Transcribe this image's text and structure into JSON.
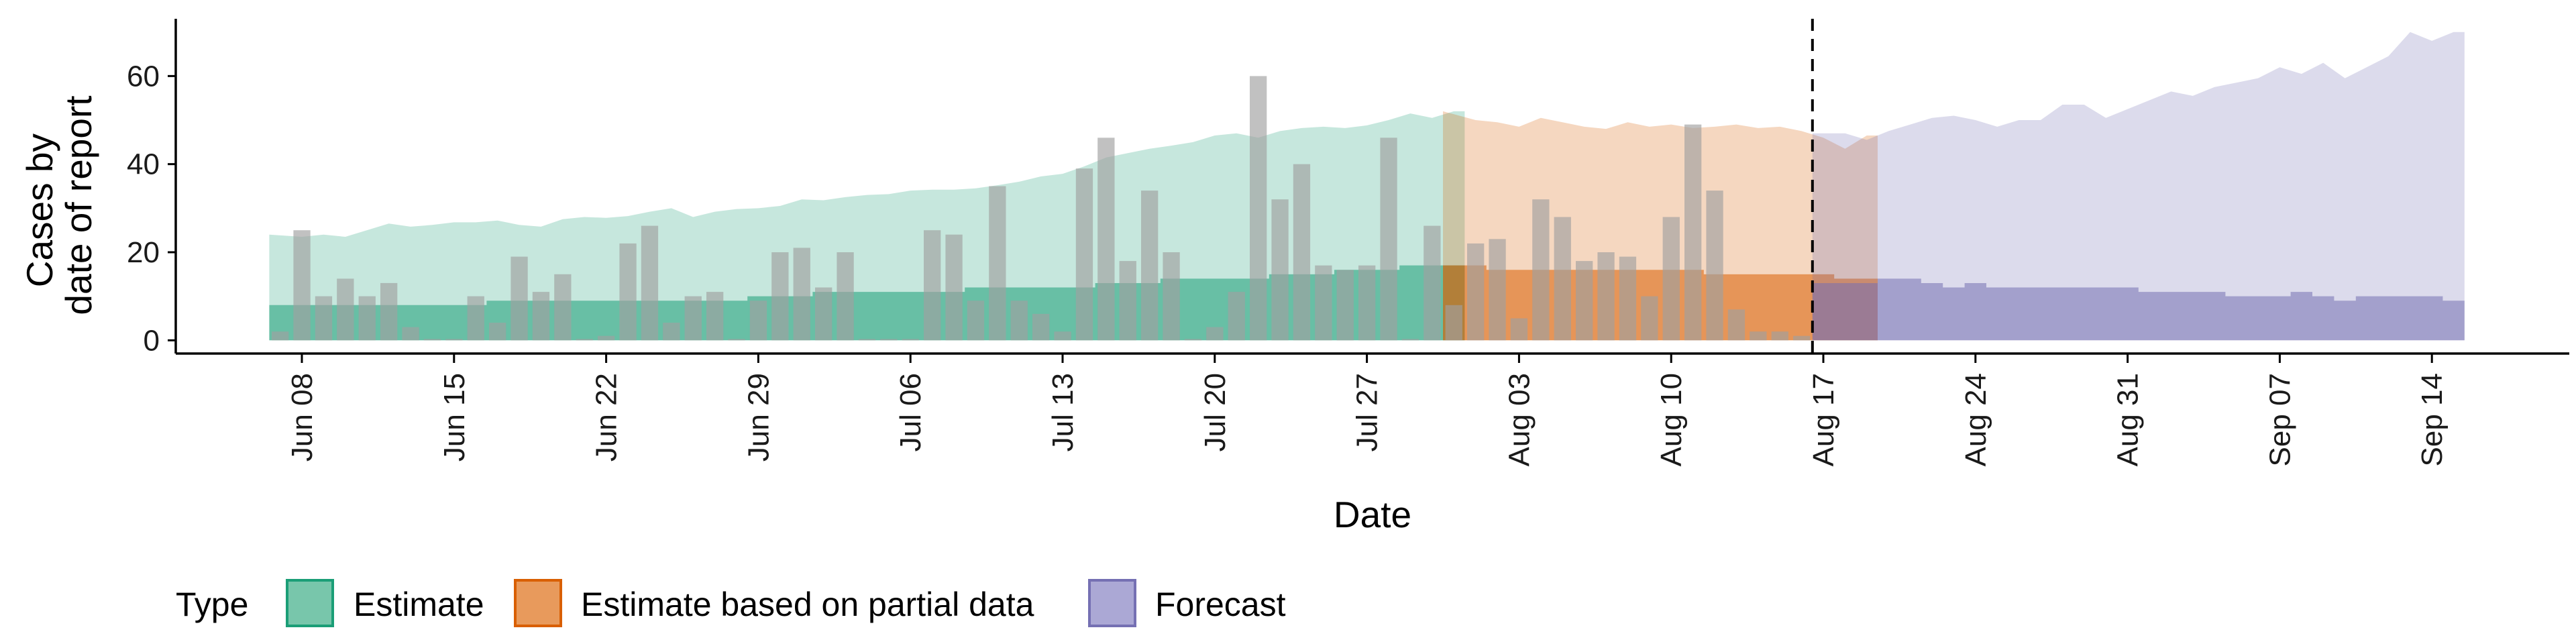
{
  "chart_data": {
    "type": "area",
    "xlabel": "Date",
    "ylabel_lines": [
      "Cases by",
      "date of report"
    ],
    "ylim": [
      -3,
      73
    ],
    "yticks": [
      0,
      20,
      40,
      60
    ],
    "date_start": "2020-06-06",
    "date_end": "2020-09-17",
    "xticks": [
      {
        "date": "2020-06-08",
        "label": "Jun 08"
      },
      {
        "date": "2020-06-15",
        "label": "Jun 15"
      },
      {
        "date": "2020-06-22",
        "label": "Jun 22"
      },
      {
        "date": "2020-06-29",
        "label": "Jun 29"
      },
      {
        "date": "2020-07-06",
        "label": "Jul 06"
      },
      {
        "date": "2020-07-13",
        "label": "Jul 13"
      },
      {
        "date": "2020-07-20",
        "label": "Jul 20"
      },
      {
        "date": "2020-07-27",
        "label": "Jul 27"
      },
      {
        "date": "2020-08-03",
        "label": "Aug 03"
      },
      {
        "date": "2020-08-10",
        "label": "Aug 10"
      },
      {
        "date": "2020-08-17",
        "label": "Aug 17"
      },
      {
        "date": "2020-08-24",
        "label": "Aug 24"
      },
      {
        "date": "2020-08-31",
        "label": "Aug 31"
      },
      {
        "date": "2020-09-07",
        "label": "Sep 07"
      },
      {
        "date": "2020-09-14",
        "label": "Sep 14"
      }
    ],
    "forecast_date": "2020-08-16",
    "reported_cases": {
      "start": "2020-06-07",
      "color": "#a0a0a0",
      "values": [
        2,
        25,
        10,
        14,
        10,
        13,
        3,
        0,
        0,
        10,
        4,
        19,
        11,
        15,
        0,
        1,
        22,
        26,
        4,
        10,
        11,
        0,
        9,
        20,
        21,
        12,
        20,
        0,
        0,
        0,
        25,
        24,
        9,
        35,
        9,
        6,
        2,
        39,
        46,
        18,
        34,
        20,
        0,
        3,
        11,
        60,
        32,
        40,
        17,
        16,
        17,
        46,
        0,
        26,
        8,
        22,
        23,
        5,
        32,
        28,
        18,
        20,
        19,
        10,
        28,
        49,
        34,
        7,
        2,
        2,
        1
      ]
    },
    "series": [
      {
        "name": "Estimate",
        "color": "#1b9e77",
        "start": "2020-06-07",
        "upper": [
          24,
          23.5,
          24,
          23.5,
          25,
          26.5,
          25.8,
          26.2,
          26.8,
          26.8,
          27.2,
          26.2,
          25.8,
          27.5,
          28,
          27.8,
          28.2,
          29.2,
          30,
          28,
          29.2,
          29.8,
          30,
          30.5,
          32,
          31.8,
          32.5,
          33,
          33.2,
          34,
          34.2,
          34.2,
          34.5,
          35.2,
          36,
          37.2,
          37.8,
          39.5,
          41.5,
          42.5,
          43.5,
          44.2,
          45,
          46.5,
          47,
          46,
          47.5,
          48.2,
          48.5,
          48.2,
          48.8,
          50,
          51.5,
          50.5,
          52
        ],
        "lower": [
          9,
          9,
          9,
          9,
          9,
          9,
          9,
          9,
          9,
          9,
          9,
          9,
          9,
          9,
          9,
          9,
          9,
          9,
          9,
          9,
          9,
          10,
          10,
          10,
          10,
          11,
          11,
          11,
          11,
          11,
          11,
          11,
          12,
          12,
          12,
          12,
          13,
          13,
          13,
          13,
          14,
          14,
          14,
          14,
          14,
          15,
          15,
          16,
          16,
          16,
          17,
          17,
          17,
          17,
          17
        ],
        "inner_upper": [
          8,
          8,
          8,
          8,
          8,
          8,
          8,
          8,
          8,
          8,
          9,
          9,
          9,
          9,
          9,
          9,
          9,
          9,
          9,
          9,
          9,
          9,
          10,
          10,
          10,
          11,
          11,
          11,
          11,
          11,
          11,
          11,
          12,
          12,
          12,
          12,
          12,
          12,
          13,
          13,
          13,
          14,
          14,
          14,
          14,
          14,
          15,
          15,
          15,
          16,
          16,
          16,
          17,
          17,
          17
        ]
      },
      {
        "name": "Estimate based on partial data",
        "color": "#d95f02",
        "start": "2020-07-31",
        "upper": [
          52,
          50,
          49.5,
          48.5,
          50.5,
          49.5,
          48.5,
          48,
          49.5,
          48.5,
          49,
          48.2,
          48.5,
          49,
          48.2,
          48.5,
          47.5,
          46,
          43.5,
          46.5
        ],
        "inner_upper": [
          17,
          17,
          16,
          16,
          16,
          16,
          16,
          16,
          16,
          16,
          16,
          16,
          15,
          15,
          15,
          15,
          15,
          15,
          14,
          14
        ]
      },
      {
        "name": "Forecast",
        "color": "#7570b3",
        "start": "2020-08-17",
        "upper": [
          47,
          47,
          45.5,
          47.5,
          49,
          50.5,
          51,
          50,
          48.5,
          50,
          50,
          53.5,
          53.5,
          50.5,
          52.5,
          54.5,
          56.5,
          55.5,
          57.5,
          58.5,
          59.5,
          62,
          60.5,
          63,
          59.5,
          62,
          64.5,
          70,
          68,
          70
        ],
        "inner_upper": [
          13,
          13,
          13,
          14,
          14,
          13,
          12,
          13,
          12,
          12,
          12,
          12,
          12,
          12,
          12,
          11,
          11,
          11,
          11,
          10,
          10,
          10,
          11,
          10,
          9,
          10,
          10,
          10,
          10,
          9
        ]
      }
    ],
    "legend": {
      "title": "Type",
      "position": "bottom",
      "items": [
        {
          "label": "Estimate",
          "fill": "#78c6ab",
          "border": "#1b9e77"
        },
        {
          "label": "Estimate based on partial data",
          "fill": "#e89a5c",
          "border": "#d95f02"
        },
        {
          "label": "Forecast",
          "fill": "#aba8d5",
          "border": "#7570b3"
        }
      ]
    }
  }
}
